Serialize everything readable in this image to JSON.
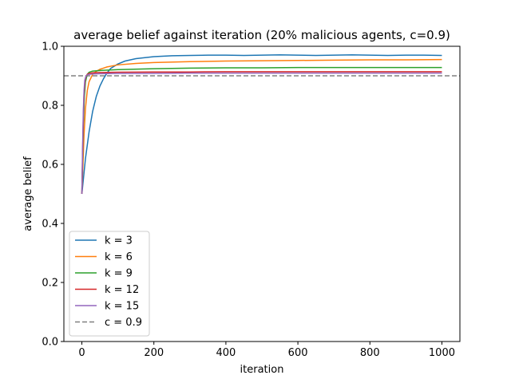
{
  "chart_data": {
    "type": "line",
    "title": "average belief against iteration (20% malicious agents, c=0.9)",
    "xlabel": "iteration",
    "ylabel": "average belief",
    "xlim": [
      -50,
      1050
    ],
    "ylim": [
      0.0,
      1.0
    ],
    "xticks": [
      0,
      200,
      400,
      600,
      800,
      1000
    ],
    "yticks": [
      0.0,
      0.2,
      0.4,
      0.6,
      0.8,
      1.0
    ],
    "xtick_labels": [
      "0",
      "200",
      "400",
      "600",
      "800",
      "1000"
    ],
    "ytick_labels": [
      "0.0",
      "0.2",
      "0.4",
      "0.6",
      "0.8",
      "1.0"
    ],
    "grid": false,
    "legend_position": "lower-left",
    "series": [
      {
        "name": "k = 3",
        "color": "#1f77b4",
        "x": [
          0,
          5,
          10,
          20,
          30,
          40,
          50,
          60,
          70,
          80,
          100,
          120,
          150,
          200,
          250,
          300,
          350,
          400,
          450,
          500,
          550,
          600,
          650,
          700,
          750,
          800,
          850,
          900,
          950,
          1000
        ],
        "y": [
          0.5,
          0.56,
          0.62,
          0.71,
          0.78,
          0.83,
          0.865,
          0.89,
          0.91,
          0.925,
          0.94,
          0.95,
          0.958,
          0.965,
          0.968,
          0.969,
          0.97,
          0.97,
          0.969,
          0.97,
          0.971,
          0.97,
          0.969,
          0.97,
          0.971,
          0.97,
          0.969,
          0.97,
          0.97,
          0.969
        ]
      },
      {
        "name": "k = 6",
        "color": "#ff7f0e",
        "x": [
          0,
          3,
          6,
          10,
          15,
          20,
          30,
          40,
          50,
          70,
          100,
          150,
          200,
          300,
          400,
          500,
          600,
          700,
          800,
          900,
          1000
        ],
        "y": [
          0.5,
          0.6,
          0.7,
          0.79,
          0.85,
          0.88,
          0.905,
          0.915,
          0.922,
          0.93,
          0.937,
          0.942,
          0.945,
          0.948,
          0.95,
          0.951,
          0.952,
          0.953,
          0.954,
          0.954,
          0.955
        ]
      },
      {
        "name": "k = 9",
        "color": "#2ca02c",
        "x": [
          0,
          2,
          4,
          7,
          10,
          15,
          20,
          30,
          50,
          100,
          200,
          300,
          400,
          500,
          600,
          700,
          800,
          900,
          1000
        ],
        "y": [
          0.5,
          0.62,
          0.73,
          0.83,
          0.88,
          0.905,
          0.912,
          0.916,
          0.918,
          0.921,
          0.924,
          0.926,
          0.927,
          0.927,
          0.928,
          0.928,
          0.928,
          0.928,
          0.928
        ]
      },
      {
        "name": "k = 12",
        "color": "#d62728",
        "x": [
          0,
          2,
          4,
          6,
          9,
          12,
          16,
          20,
          30,
          50,
          100,
          200,
          300,
          400,
          500,
          600,
          700,
          800,
          900,
          1000
        ],
        "y": [
          0.5,
          0.64,
          0.76,
          0.84,
          0.885,
          0.9,
          0.906,
          0.908,
          0.91,
          0.911,
          0.912,
          0.913,
          0.913,
          0.914,
          0.914,
          0.914,
          0.914,
          0.914,
          0.914,
          0.914
        ]
      },
      {
        "name": "k = 15",
        "color": "#9467bd",
        "x": [
          0,
          2,
          4,
          6,
          8,
          11,
          15,
          20,
          30,
          50,
          100,
          200,
          300,
          400,
          500,
          600,
          700,
          800,
          900,
          1000
        ],
        "y": [
          0.5,
          0.66,
          0.78,
          0.85,
          0.885,
          0.898,
          0.903,
          0.905,
          0.906,
          0.907,
          0.908,
          0.908,
          0.909,
          0.909,
          0.909,
          0.909,
          0.909,
          0.909,
          0.909,
          0.909
        ]
      }
    ],
    "reference_line": {
      "name": "c = 0.9",
      "y": 0.9,
      "color": "#808080",
      "style": "dashed"
    }
  }
}
